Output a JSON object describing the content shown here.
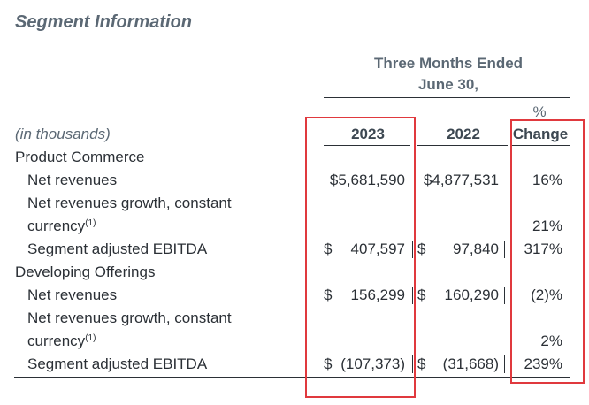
{
  "title": "Segment Information",
  "header": {
    "period_line1": "Three Months Ended",
    "period_line2": "June 30,",
    "units": "(in thousands)",
    "col_2023": "2023",
    "col_2022": "2022",
    "pct_top": "%",
    "pct_bottom": "Change"
  },
  "rows": {
    "pc_section": "Product Commerce",
    "pc_net_rev": {
      "label": "Net revenues",
      "v2023": "$5,681,590",
      "v2022": "$4,877,531",
      "pct": "16%"
    },
    "pc_growth": {
      "label_line1": "Net revenues growth, constant",
      "label_line2": "currency",
      "footnote": "(1)",
      "pct": "21%"
    },
    "pc_ebitda": {
      "label": "Segment adjusted EBITDA",
      "dollar": "$",
      "v2023": "407,597",
      "v2022": "97,840",
      "pct": "317%"
    },
    "do_section": "Developing Offerings",
    "do_net_rev": {
      "label": "Net revenues",
      "dollar": "$",
      "v2023": "156,299",
      "v2022": "160,290",
      "pct": "(2)%"
    },
    "do_growth": {
      "label_line1": "Net revenues growth, constant",
      "label_line2": "currency",
      "footnote": "(1)",
      "pct": "2%"
    },
    "do_ebitda": {
      "label": "Segment adjusted EBITDA",
      "dollar": "$",
      "v2023": "(107,373)",
      "v2022": "(31,668)",
      "pct": "239%"
    }
  },
  "colors": {
    "highlight": "#e0393e",
    "heading": "#5b6874",
    "text": "#2b3036"
  }
}
